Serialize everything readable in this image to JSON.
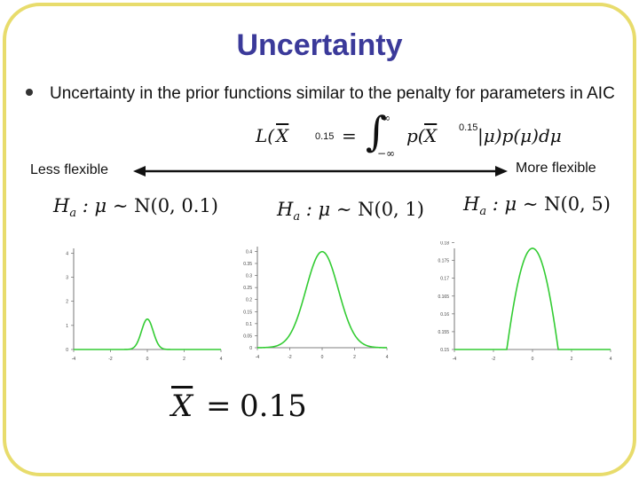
{
  "slide": {
    "title": "Uncertainty",
    "bullet": "Uncertainty in the prior functions similar to the penalty for parameters in AIC",
    "formula_value_left": "0.15",
    "formula_value_right": "0.15",
    "less_flexible": "Less flexible",
    "more_flexible": "More flexible",
    "xbar_value": "0.15"
  },
  "hypotheses": [
    {
      "label": "H_a : μ ~ N(0, 0.1)",
      "mean": 0,
      "variance": 0.1
    },
    {
      "label": "H_a : μ ~ N(0, 1)",
      "mean": 0,
      "variance": 1
    },
    {
      "label": "H_a : μ ~ N(0, 5)",
      "mean": 0,
      "variance": 5
    }
  ],
  "colors": {
    "title": "#3b3a9a",
    "frame": "#e8dc6c",
    "curve": "#33cc33",
    "arrow": "#111111"
  },
  "chart_data": [
    {
      "type": "line",
      "x": [
        -4,
        4
      ],
      "xticks": [
        "-4",
        "-2",
        "0",
        "2",
        "4"
      ],
      "yticks": [
        "0",
        "1",
        "2",
        "3",
        "4"
      ],
      "ylim": [
        0,
        4.2
      ],
      "series": [
        {
          "mean": 0,
          "variance": 0.1
        }
      ]
    },
    {
      "type": "line",
      "x": [
        -4,
        4
      ],
      "xticks": [
        "-4",
        "-2",
        "0",
        "2",
        "4"
      ],
      "yticks": [
        "0",
        "0.05",
        "0.1",
        "0.15",
        "0.2",
        "0.25",
        "0.3",
        "0.35",
        "0.4"
      ],
      "ylim": [
        0,
        0.42
      ],
      "series": [
        {
          "mean": 0,
          "variance": 1
        }
      ]
    },
    {
      "type": "line",
      "x": [
        -4,
        4
      ],
      "xticks": [
        "-4",
        "-2",
        "0",
        "2",
        "4"
      ],
      "yticks": [
        "0.15",
        "0.155",
        "0.16",
        "0.165",
        "0.17",
        "0.175",
        "0.18"
      ],
      "ylim": [
        0.15,
        0.1784
      ],
      "series": [
        {
          "mean": 0,
          "variance": 5
        }
      ]
    }
  ]
}
